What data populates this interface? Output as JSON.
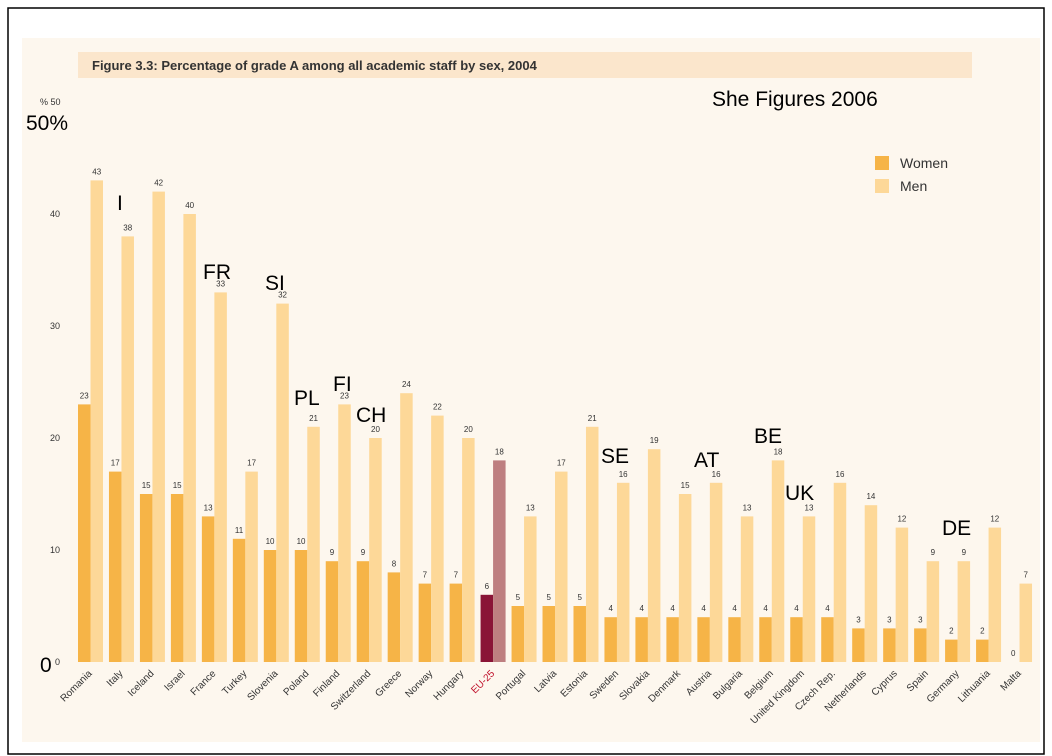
{
  "chart_data": {
    "type": "bar",
    "title": "Figure 3.3: Percentage of grade A among all academic staff by sex, 2004",
    "categories": [
      "Romania",
      "Italy",
      "Iceland",
      "Israel",
      "France",
      "Turkey",
      "Slovenia",
      "Poland",
      "Finland",
      "Switzerland",
      "Greece",
      "Norway",
      "Hungary",
      "EU-25",
      "Portugal",
      "Latvia",
      "Estonia",
      "Sweden",
      "Slovakia",
      "Denmark",
      "Austria",
      "Bulgaria",
      "Belgium",
      "United Kingdom",
      "Czech Rep.",
      "Netherlands",
      "Cyprus",
      "Spain",
      "Germany",
      "Lithuania",
      "Malta"
    ],
    "series": [
      {
        "name": "Women",
        "color": "#f6b447",
        "highlight_color": "#8a1436",
        "values": [
          23,
          17,
          15,
          15,
          13,
          11,
          10,
          10,
          9,
          9,
          8,
          7,
          7,
          6,
          5,
          5,
          5,
          4,
          4,
          4,
          4,
          4,
          4,
          4,
          4,
          3,
          3,
          3,
          2,
          2,
          0
        ]
      },
      {
        "name": "Men",
        "color": "#fdd898",
        "highlight_color": "#be7f80",
        "values": [
          43,
          38,
          42,
          40,
          33,
          17,
          32,
          21,
          23,
          20,
          24,
          22,
          20,
          18,
          13,
          17,
          21,
          16,
          19,
          15,
          16,
          13,
          18,
          13,
          16,
          14,
          12,
          9,
          9,
          12,
          7
        ]
      }
    ],
    "highlight_index": 13,
    "ylim": [
      0,
      50
    ],
    "yticks": [
      {
        "value": 0,
        "label": "0"
      },
      10,
      20,
      30,
      40,
      {
        "value": 50,
        "label": "% 50"
      }
    ],
    "legend": "upper right",
    "annotations": [
      "50%",
      "0",
      "She Figures 2006",
      "I",
      "FR",
      "SI",
      "PL",
      "FI",
      "CH",
      "SE",
      "AT",
      "BE",
      "UK",
      "DE"
    ]
  }
}
